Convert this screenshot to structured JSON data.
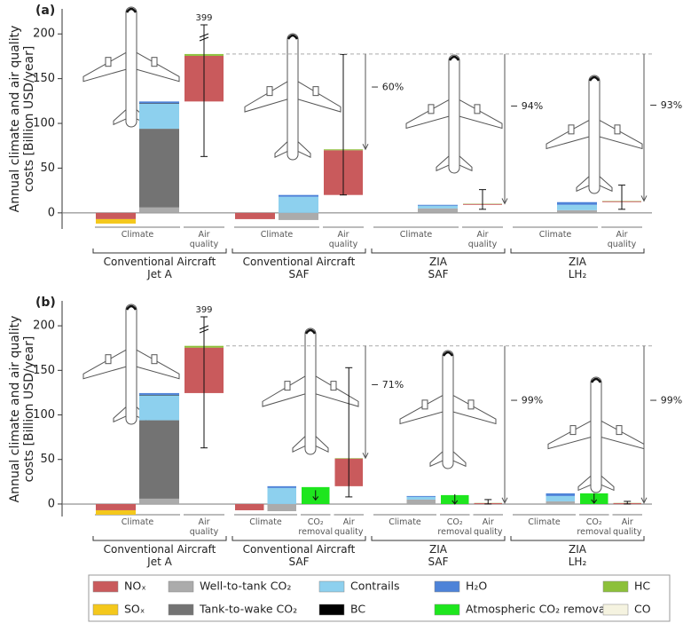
{
  "chart_data": [
    {
      "type": "bar",
      "title": "(a)",
      "y_label": "Annual climate and air quality\ncosts [Billion USD/year]",
      "ylim": [
        -18,
        228
      ],
      "yticks": [
        0,
        50,
        100,
        150,
        200
      ],
      "groups": [
        {
          "name": "Conventional Aircraft\nJet A",
          "categories": [
            "Climate",
            "Air\nquality"
          ]
        },
        {
          "name": "Conventional Aircraft\nSAF",
          "categories": [
            "Climate",
            "Air\nquality"
          ],
          "reduction": "− 60%"
        },
        {
          "name": "ZIA\nSAF",
          "categories": [
            "Climate",
            "Air\nquality"
          ],
          "reduction": "− 94%"
        },
        {
          "name": "ZIA\nLH₂",
          "categories": [
            "Climate",
            "Air\nquality"
          ],
          "reduction": "− 93%"
        }
      ],
      "bar_bottoms": [
        0,
        124.5,
        0,
        20,
        0,
        9,
        0,
        12
      ],
      "errors": [
        null,
        [
          63,
          399
        ],
        null,
        [
          20,
          177
        ],
        null,
        [
          4,
          26
        ],
        null,
        [
          4,
          31
        ]
      ],
      "series": [
        {
          "name": "NOₓ",
          "color": "#c95a5c",
          "values": [
            -7,
            51,
            -7,
            50,
            0,
            1,
            0,
            1
          ]
        },
        {
          "name": "SOₓ",
          "color": "#f4c81c",
          "values": [
            -5,
            0,
            0,
            0,
            0,
            0,
            0,
            0
          ]
        },
        {
          "name": "Well-to-tank CO₂",
          "color": "#ababab",
          "values": [
            6,
            0,
            -8,
            0,
            5,
            0,
            3,
            0
          ]
        },
        {
          "name": "Tank-to-wake CO₂",
          "color": "#737373",
          "values": [
            88,
            0,
            0,
            0,
            0,
            0,
            0,
            0
          ]
        },
        {
          "name": "Contrails",
          "color": "#8dd0ee",
          "values": [
            28,
            0,
            18,
            0,
            3,
            0,
            6,
            0
          ]
        },
        {
          "name": "BC",
          "color": "#000000",
          "values": [
            0.5,
            0,
            0,
            0,
            0,
            0,
            0,
            0
          ]
        },
        {
          "name": "H₂O",
          "color": "#4e83d8",
          "values": [
            2,
            0,
            2,
            0,
            1,
            0,
            3,
            0
          ]
        },
        {
          "name": "Atmospheric CO₂ removal",
          "color": "#1ee61e",
          "values": [
            0,
            0,
            0,
            0,
            0,
            0,
            0,
            0
          ]
        },
        {
          "name": "HC",
          "color": "#8cc03a",
          "values": [
            0,
            2,
            0,
            1,
            0,
            0.3,
            0,
            0.3
          ]
        },
        {
          "name": "CO",
          "color": "#f5f3e0",
          "values": [
            0,
            0,
            0,
            0,
            0,
            0,
            0,
            0
          ]
        }
      ]
    },
    {
      "type": "bar",
      "title": "(b)",
      "y_label": "Annual climate and air quality\ncosts [Billion USD/year]",
      "ylim": [
        -14,
        228
      ],
      "yticks": [
        0,
        50,
        100,
        150,
        200
      ],
      "groups": [
        {
          "name": "Conventional Aircraft\nJet A",
          "categories": [
            "Climate",
            "Air\nquality"
          ]
        },
        {
          "name": "Conventional Aircraft\nSAF",
          "categories": [
            "Climate",
            "CO₂\nremoval",
            "Air\nquality"
          ],
          "reduction": "− 71%"
        },
        {
          "name": "ZIA\nSAF",
          "categories": [
            "Climate",
            "CO₂\nremoval",
            "Air\nquality"
          ],
          "reduction": "− 99%"
        },
        {
          "name": "ZIA\nLH₂",
          "categories": [
            "Climate",
            "CO₂\nremoval",
            "Air\nquality"
          ],
          "reduction": "− 99%"
        }
      ],
      "bar_bottoms": [
        0,
        124.5,
        0,
        0,
        20,
        0,
        0,
        0,
        0,
        0,
        0
      ],
      "errors": [
        null,
        [
          63,
          399
        ],
        null,
        null,
        [
          8,
          153
        ],
        null,
        null,
        [
          0,
          5
        ],
        null,
        null,
        [
          0,
          3
        ]
      ],
      "series": [
        {
          "name": "NOₓ",
          "color": "#c95a5c",
          "values": [
            -7,
            51,
            -7,
            0,
            31,
            0,
            0,
            1,
            0,
            0,
            1
          ]
        },
        {
          "name": "SOₓ",
          "color": "#f4c81c",
          "values": [
            -5,
            0,
            0,
            0,
            0,
            0,
            0,
            0,
            0,
            0,
            0
          ]
        },
        {
          "name": "Well-to-tank CO₂",
          "color": "#ababab",
          "values": [
            6,
            0,
            -8,
            0,
            0,
            5,
            0,
            0,
            3,
            0,
            0
          ]
        },
        {
          "name": "Tank-to-wake CO₂",
          "color": "#737373",
          "values": [
            88,
            0,
            0,
            0,
            0,
            0,
            0,
            0,
            0,
            0,
            0
          ]
        },
        {
          "name": "Contrails",
          "color": "#8dd0ee",
          "values": [
            28,
            0,
            18,
            0,
            0,
            3,
            0,
            0,
            6,
            0,
            0
          ]
        },
        {
          "name": "BC",
          "color": "#000000",
          "values": [
            0.5,
            0,
            0,
            0,
            0,
            0,
            0,
            0,
            0,
            0,
            0
          ]
        },
        {
          "name": "H₂O",
          "color": "#4e83d8",
          "values": [
            2,
            0,
            2,
            0,
            0,
            1,
            0,
            0,
            3,
            0,
            0
          ]
        },
        {
          "name": "Atmospheric CO₂ removal",
          "color": "#1ee61e",
          "values": [
            0,
            0,
            0,
            19,
            0,
            0,
            10,
            0,
            0,
            12,
            0
          ]
        },
        {
          "name": "HC",
          "color": "#8cc03a",
          "values": [
            0,
            2,
            0,
            0,
            0.5,
            0,
            0,
            0.2,
            0,
            0,
            0.2
          ]
        },
        {
          "name": "CO",
          "color": "#f5f3e0",
          "values": [
            0,
            0,
            0,
            0,
            0,
            0,
            0,
            0,
            0,
            0,
            0
          ]
        }
      ]
    }
  ]
}
